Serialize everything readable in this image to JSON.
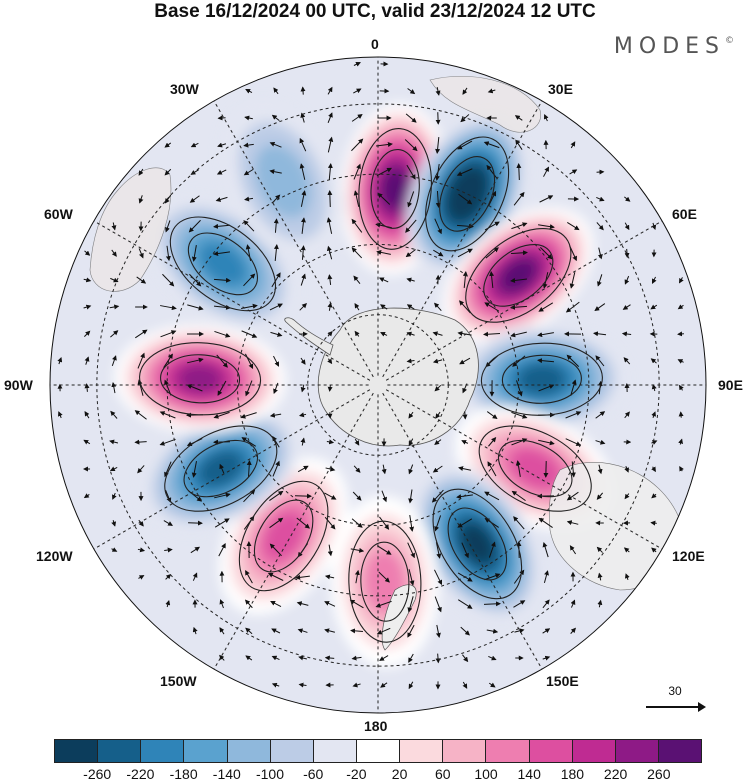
{
  "title": "Base 16/12/2024 00 UTC, valid 23/12/2024 12 UTC",
  "logo": "MODES",
  "logo_mark": "©",
  "longitude_labels": {
    "lon_0": "0",
    "lon_30e": "30E",
    "lon_60e": "60E",
    "lon_90e": "90E",
    "lon_120e": "120E",
    "lon_150e": "150E",
    "lon_180": "180",
    "lon_150w": "150W",
    "lon_120w": "120W",
    "lon_90w": "90W",
    "lon_60w": "60W",
    "lon_30w": "30W"
  },
  "reference_vector": "30",
  "colorbar": {
    "colors": [
      "#0c3d5c",
      "#155f8a",
      "#2f84b8",
      "#5aa2cf",
      "#8fb8dc",
      "#bccce6",
      "#e3e6f2",
      "#ffffff",
      "#fbdade",
      "#f6b3c6",
      "#ee7eb0",
      "#dd4fa0",
      "#bf2b92",
      "#8e1a86",
      "#5a1173"
    ],
    "tick_labels": [
      "-260",
      "-220",
      "-180",
      "-140",
      "-100",
      "-60",
      "-20",
      "20",
      "60",
      "100",
      "140",
      "180",
      "220",
      "260"
    ]
  },
  "anomaly_centers": [
    {
      "lon": 5,
      "lat": -48,
      "value": 260
    },
    {
      "lon": 25,
      "lat": -45,
      "value": -260
    },
    {
      "lon": 52,
      "lat": -52,
      "value": 260
    },
    {
      "lon": 88,
      "lat": -55,
      "value": -180
    },
    {
      "lon": 118,
      "lat": -52,
      "value": 140
    },
    {
      "lon": 148,
      "lat": -50,
      "value": -240
    },
    {
      "lon": 178,
      "lat": -48,
      "value": 120
    },
    {
      "lon": -148,
      "lat": -52,
      "value": 140
    },
    {
      "lon": -118,
      "lat": -52,
      "value": -200
    },
    {
      "lon": -88,
      "lat": -52,
      "value": 240
    },
    {
      "lon": -52,
      "lat": -48,
      "value": -160
    },
    {
      "lon": -25,
      "lat": -42,
      "value": -60
    }
  ]
}
